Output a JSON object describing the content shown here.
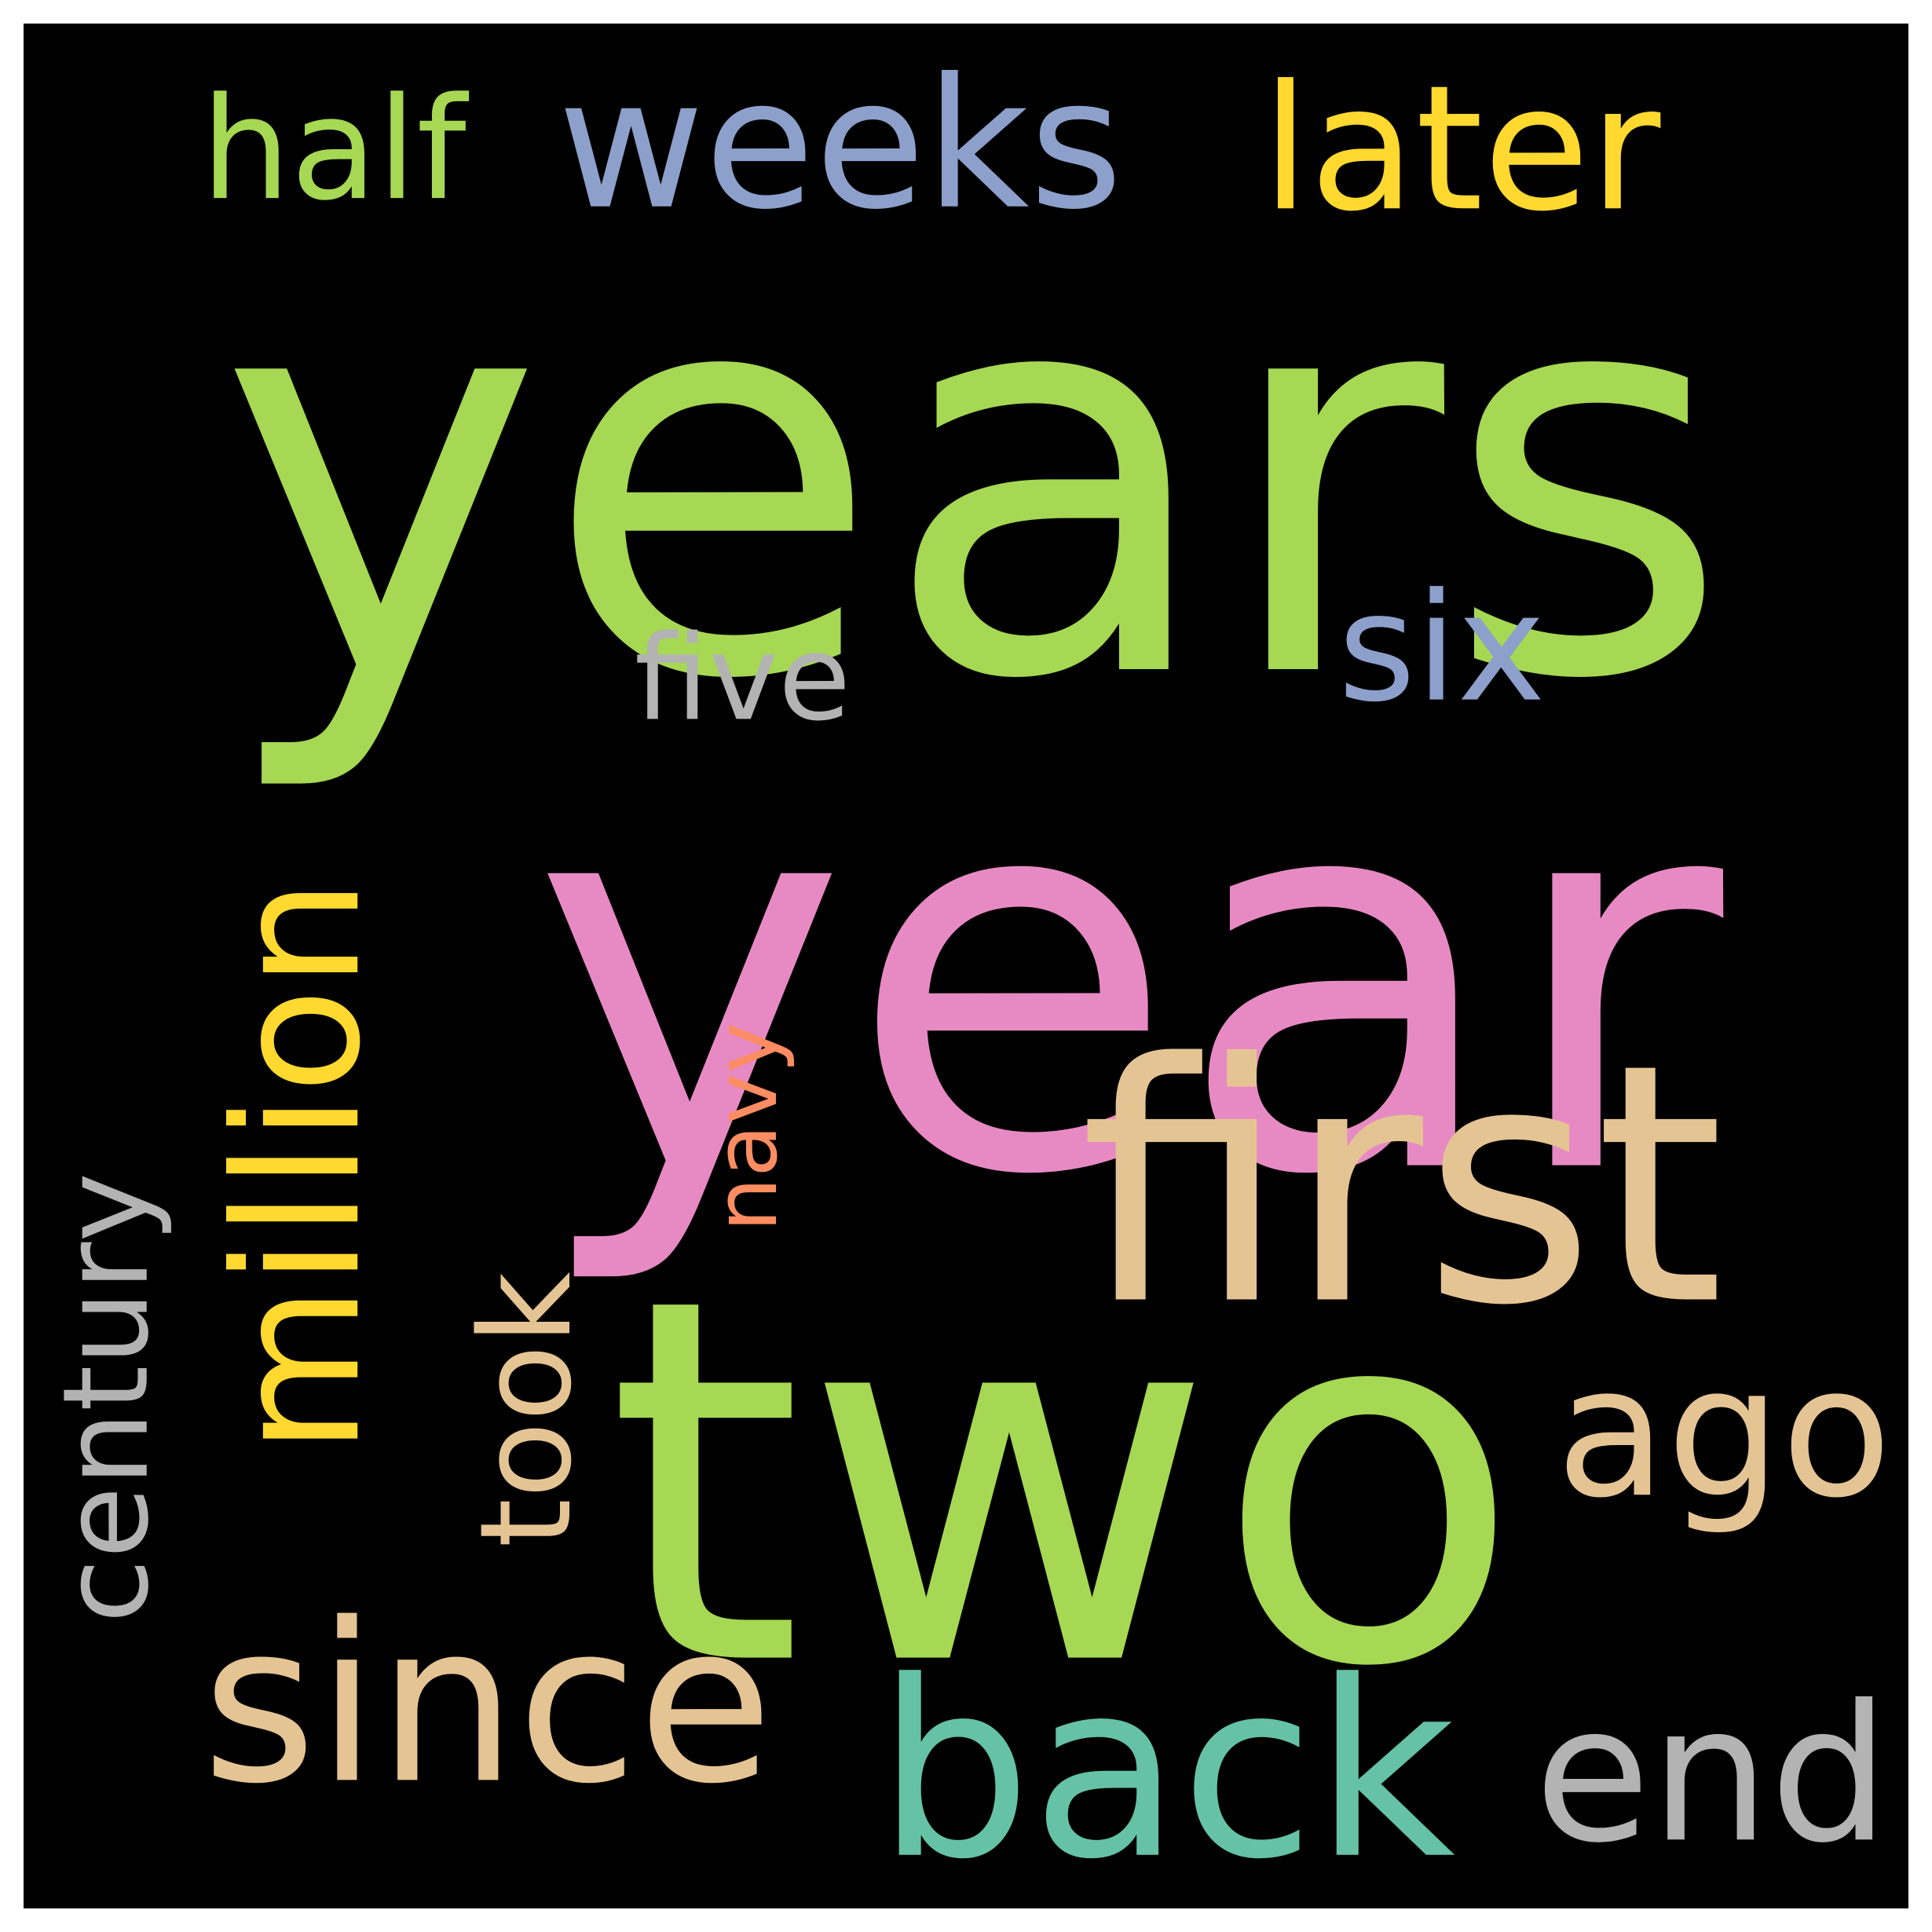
{
  "background": "#000000",
  "words": [
    {
      "key": "years",
      "text": "years",
      "color": "#a6d854",
      "rotated": false
    },
    {
      "key": "year",
      "text": "year",
      "color": "#e78ac3",
      "rotated": false
    },
    {
      "key": "two",
      "text": "two",
      "color": "#a6d854",
      "rotated": false
    },
    {
      "key": "first",
      "text": "first",
      "color": "#e5c494",
      "rotated": false
    },
    {
      "key": "million",
      "text": "million",
      "color": "#ffd92f",
      "rotated": true
    },
    {
      "key": "since",
      "text": "since",
      "color": "#e5c494",
      "rotated": false
    },
    {
      "key": "back",
      "text": "back",
      "color": "#66c2a5",
      "rotated": false
    },
    {
      "key": "weeks",
      "text": "weeks",
      "color": "#8da0cb",
      "rotated": false
    },
    {
      "key": "later",
      "text": "later",
      "color": "#ffd92f",
      "rotated": false
    },
    {
      "key": "half",
      "text": "half",
      "color": "#a6d854",
      "rotated": false
    },
    {
      "key": "ago",
      "text": "ago",
      "color": "#e5c494",
      "rotated": false
    },
    {
      "key": "end",
      "text": "end",
      "color": "#b3b3b3",
      "rotated": false
    },
    {
      "key": "took",
      "text": "took",
      "color": "#e5c494",
      "rotated": true
    },
    {
      "key": "century",
      "text": "century",
      "color": "#b3b3b3",
      "rotated": true
    },
    {
      "key": "six",
      "text": "six",
      "color": "#8da0cb",
      "rotated": false
    },
    {
      "key": "five",
      "text": "five",
      "color": "#b3b3b3",
      "rotated": false
    },
    {
      "key": "navy",
      "text": "navy",
      "color": "#fc8d62",
      "rotated": true
    }
  ]
}
